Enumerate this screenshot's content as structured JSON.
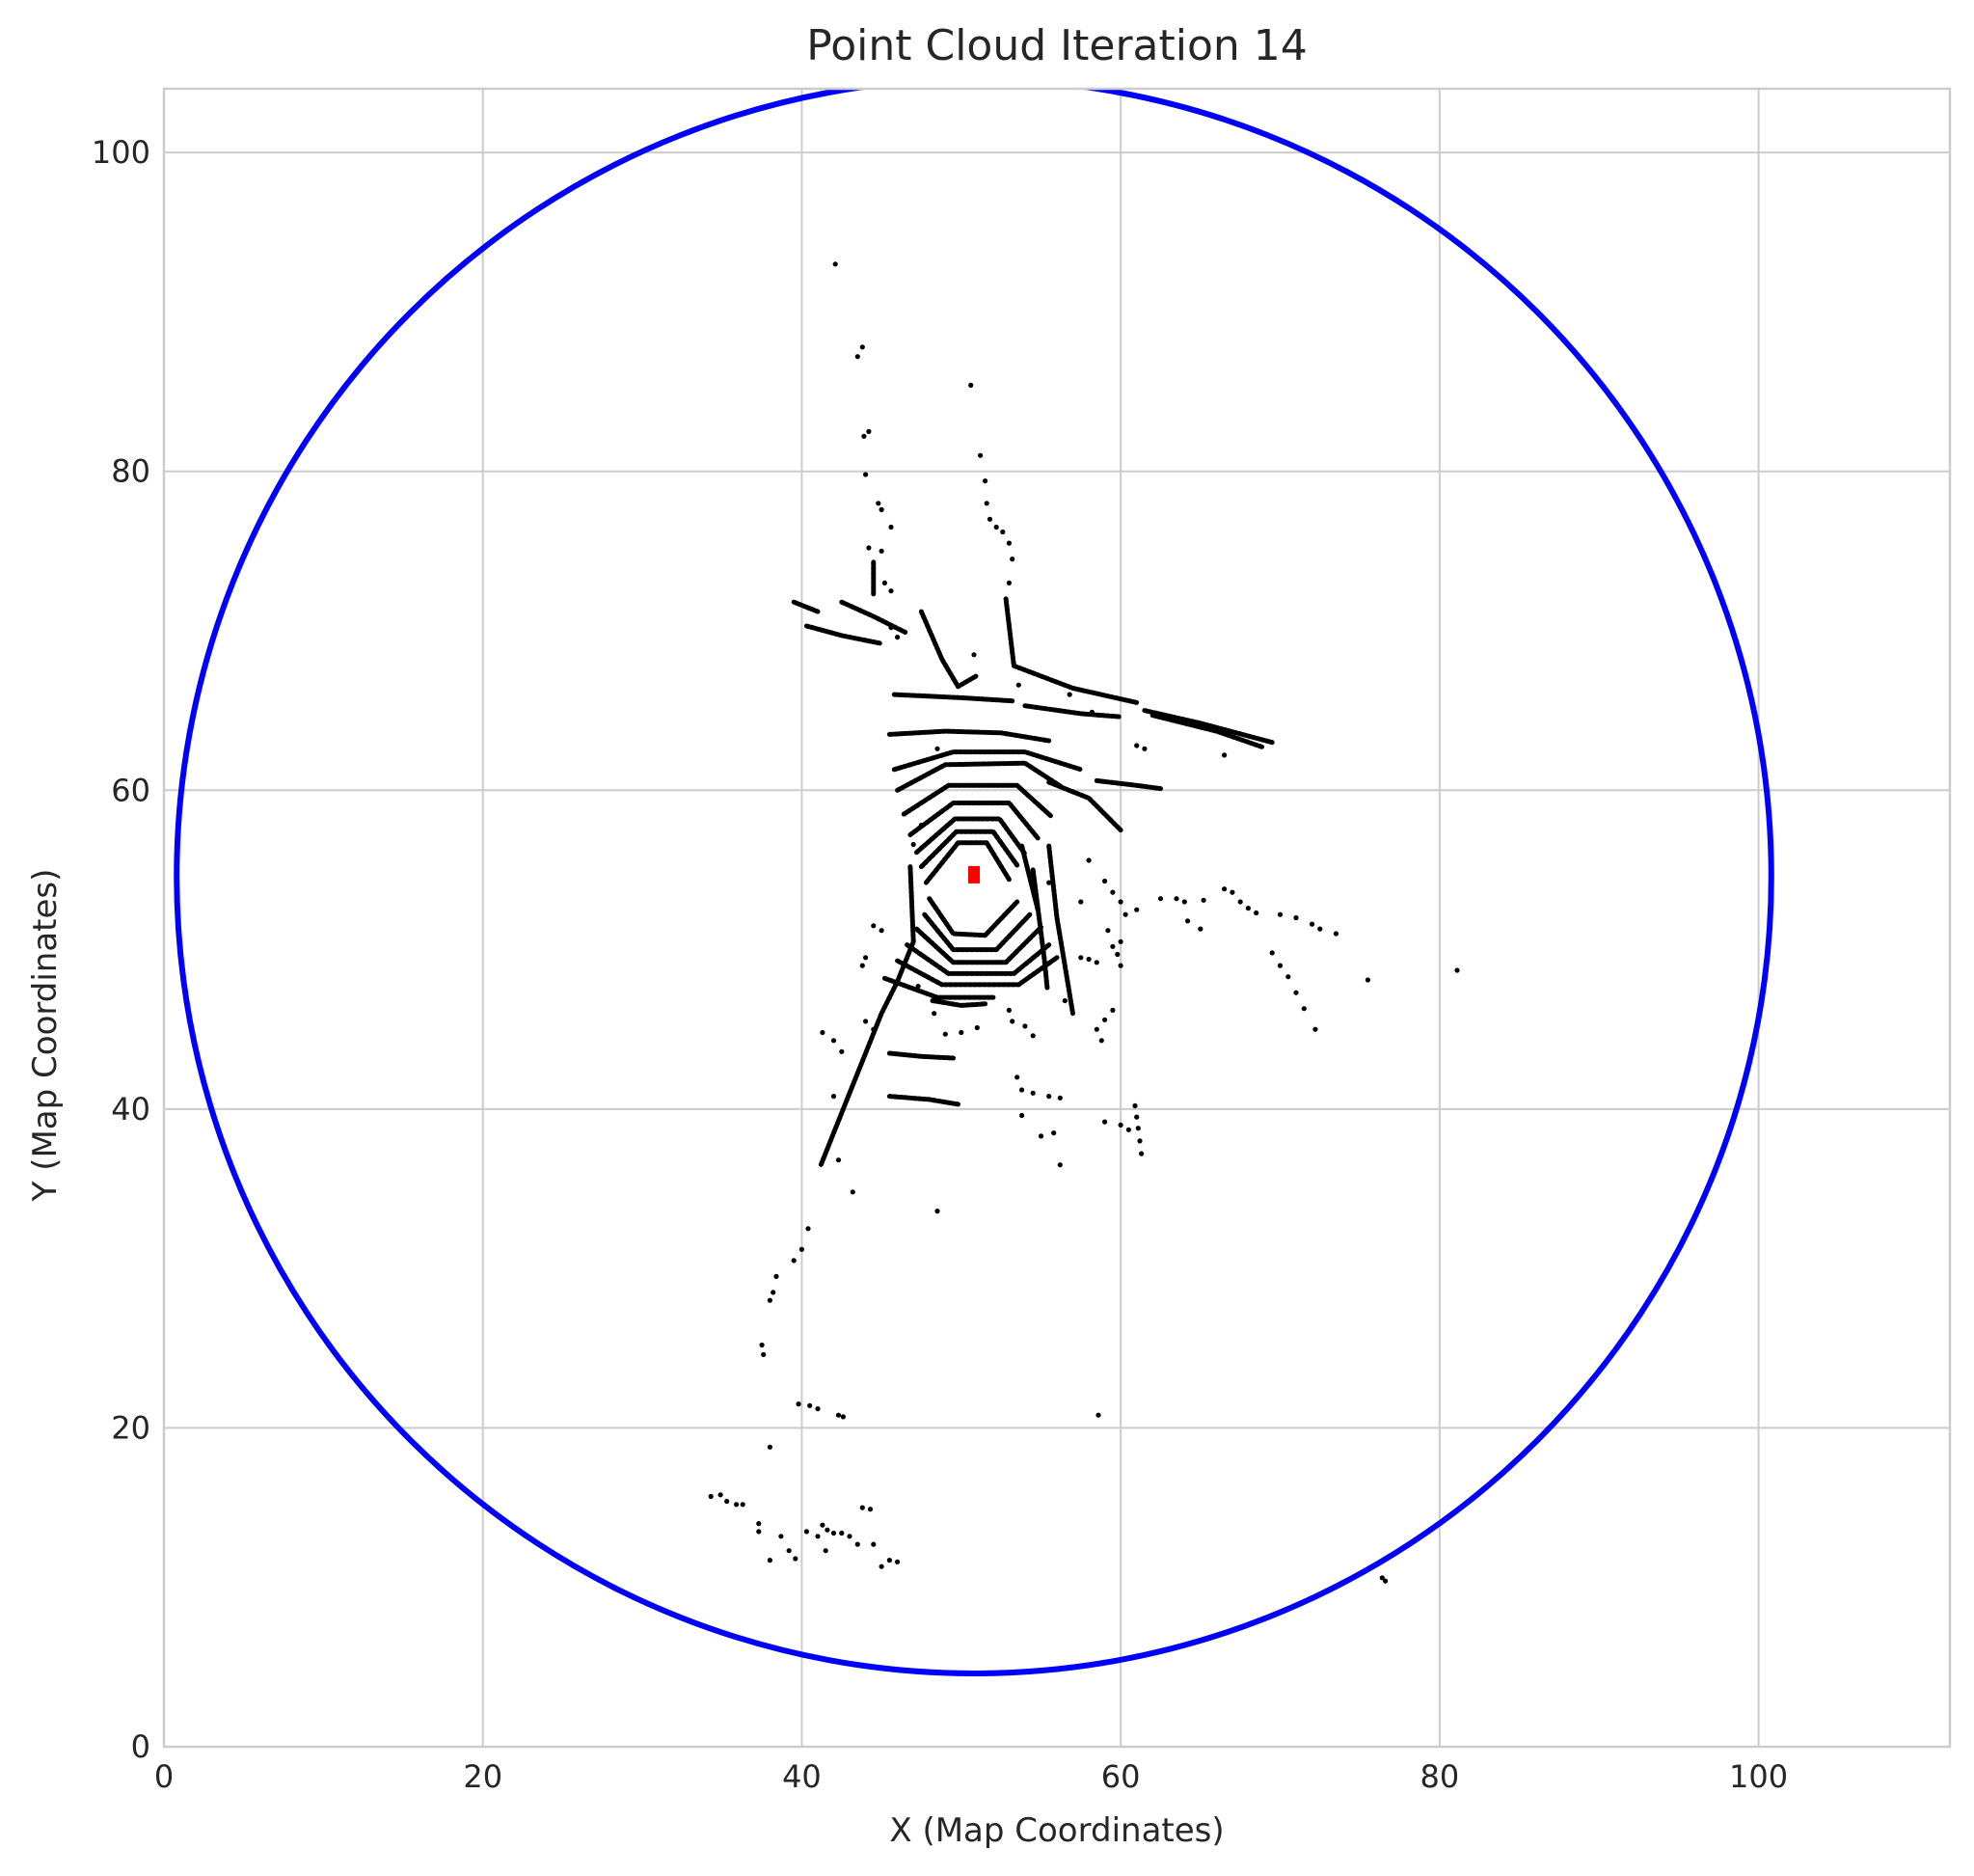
{
  "chart_data": {
    "type": "scatter",
    "title": "Point Cloud Iteration 14",
    "xlabel": "X (Map Coordinates)",
    "ylabel": "Y (Map Coordinates)",
    "xlim": [
      0,
      112
    ],
    "ylim": [
      0,
      104
    ],
    "xticks": [
      0,
      20,
      40,
      60,
      80,
      100
    ],
    "yticks": [
      0,
      20,
      40,
      60,
      80,
      100
    ],
    "grid": true,
    "legend": "none",
    "colors": {
      "points": "#000000",
      "circle": "#0000ff",
      "vehicle": "#ff0000",
      "grid": "#cccccc",
      "text": "#262626"
    },
    "range_circle": {
      "center": [
        50.8,
        54.6
      ],
      "radius": 50
    },
    "vehicle_marker": {
      "x": 50.8,
      "y": 54.7
    },
    "polylines": [
      [
        [
          42.5,
          71.8
        ],
        [
          44.5,
          70.9
        ],
        [
          46.5,
          69.9
        ]
      ],
      [
        [
          39.5,
          71.8
        ],
        [
          41.0,
          71.2
        ]
      ],
      [
        [
          40.3,
          70.3
        ],
        [
          42.5,
          69.7
        ],
        [
          45.0,
          69.2
        ]
      ],
      [
        [
          44.5,
          74.3
        ],
        [
          44.5,
          72.3
        ]
      ],
      [
        [
          45.8,
          66.0
        ],
        [
          50.0,
          65.8
        ],
        [
          53.2,
          65.6
        ]
      ],
      [
        [
          47.5,
          71.2
        ],
        [
          48.8,
          68.2
        ],
        [
          49.8,
          66.5
        ],
        [
          51.0,
          67.2
        ]
      ],
      [
        [
          52.8,
          72.0
        ],
        [
          53.3,
          67.8
        ],
        [
          57.0,
          66.4
        ],
        [
          61.0,
          65.5
        ]
      ],
      [
        [
          54.0,
          65.3
        ],
        [
          57.5,
          64.8
        ],
        [
          60.0,
          64.6
        ]
      ],
      [
        [
          61.5,
          65.0
        ],
        [
          65.0,
          64.2
        ],
        [
          69.5,
          63.0
        ]
      ],
      [
        [
          62.0,
          64.7
        ],
        [
          66.0,
          63.7
        ],
        [
          68.9,
          62.7
        ]
      ],
      [
        [
          45.5,
          63.5
        ],
        [
          49.0,
          63.7
        ],
        [
          52.5,
          63.6
        ],
        [
          55.5,
          63.1
        ]
      ],
      [
        [
          45.8,
          61.3
        ],
        [
          49.5,
          62.4
        ],
        [
          54.0,
          62.4
        ],
        [
          57.5,
          61.3
        ]
      ],
      [
        [
          46.0,
          60.0
        ],
        [
          49.0,
          61.6
        ],
        [
          54.0,
          61.7
        ],
        [
          56.3,
          60.2
        ]
      ],
      [
        [
          46.4,
          58.5
        ],
        [
          49.2,
          60.3
        ],
        [
          53.5,
          60.3
        ],
        [
          55.6,
          58.4
        ]
      ],
      [
        [
          46.8,
          57.2
        ],
        [
          49.5,
          59.2
        ],
        [
          53.0,
          59.2
        ],
        [
          54.8,
          57.0
        ]
      ],
      [
        [
          47.2,
          56.1
        ],
        [
          49.6,
          58.2
        ],
        [
          52.4,
          58.2
        ],
        [
          54.0,
          56.0
        ]
      ],
      [
        [
          47.5,
          55.2
        ],
        [
          49.7,
          57.4
        ],
        [
          52.0,
          57.4
        ],
        [
          53.5,
          55.3
        ]
      ],
      [
        [
          47.8,
          54.2
        ],
        [
          49.8,
          56.7
        ],
        [
          51.6,
          56.7
        ],
        [
          53.0,
          54.4
        ]
      ],
      [
        [
          48.0,
          53.2
        ],
        [
          49.5,
          51.0
        ],
        [
          51.5,
          50.9
        ],
        [
          53.5,
          53.0
        ]
      ],
      [
        [
          47.7,
          52.2
        ],
        [
          49.5,
          50.0
        ],
        [
          52.2,
          50.0
        ],
        [
          54.3,
          52.2
        ]
      ],
      [
        [
          47.2,
          51.3
        ],
        [
          49.5,
          49.2
        ],
        [
          52.8,
          49.2
        ],
        [
          55.0,
          51.4
        ]
      ],
      [
        [
          46.6,
          50.3
        ],
        [
          49.2,
          48.5
        ],
        [
          53.3,
          48.5
        ],
        [
          55.5,
          50.3
        ]
      ],
      [
        [
          46.0,
          49.3
        ],
        [
          48.8,
          47.8
        ],
        [
          53.6,
          47.8
        ],
        [
          56.0,
          49.5
        ]
      ],
      [
        [
          45.2,
          48.2
        ],
        [
          48.5,
          47.0
        ],
        [
          52.0,
          47.0
        ]
      ],
      [
        [
          46.8,
          55.2
        ],
        [
          47.0,
          50.5
        ],
        [
          46.0,
          48.0
        ],
        [
          45.0,
          46.0
        ],
        [
          44.0,
          43.5
        ],
        [
          43.0,
          41.0
        ],
        [
          42.0,
          38.5
        ],
        [
          41.2,
          36.5
        ]
      ],
      [
        [
          53.8,
          56.5
        ],
        [
          54.8,
          52.5
        ]
      ],
      [
        [
          55.5,
          56.5
        ],
        [
          56.0,
          52.0
        ],
        [
          56.5,
          49.0
        ],
        [
          57.0,
          46.0
        ]
      ],
      [
        [
          54.5,
          55.0
        ],
        [
          55.2,
          49.5
        ],
        [
          55.4,
          47.5
        ]
      ],
      [
        [
          45.5,
          43.5
        ],
        [
          47.5,
          43.3
        ],
        [
          49.5,
          43.2
        ]
      ],
      [
        [
          45.5,
          40.8
        ],
        [
          48.0,
          40.6
        ],
        [
          49.8,
          40.3
        ]
      ],
      [
        [
          48.2,
          46.8
        ],
        [
          50.0,
          46.5
        ],
        [
          51.5,
          46.6
        ]
      ],
      [
        [
          55.5,
          60.5
        ],
        [
          58.0,
          59.5
        ],
        [
          60.0,
          57.5
        ]
      ],
      [
        [
          58.5,
          60.6
        ],
        [
          61.0,
          60.3
        ],
        [
          62.5,
          60.1
        ]
      ]
    ],
    "points": [
      [
        42.1,
        93.0
      ],
      [
        43.8,
        87.8
      ],
      [
        43.5,
        87.2
      ],
      [
        43.9,
        82.2
      ],
      [
        44.2,
        82.5
      ],
      [
        44.0,
        79.8
      ],
      [
        44.8,
        78.0
      ],
      [
        45.0,
        77.6
      ],
      [
        45.6,
        76.5
      ],
      [
        44.2,
        75.2
      ],
      [
        45.0,
        75.0
      ],
      [
        45.2,
        73.0
      ],
      [
        45.6,
        72.5
      ],
      [
        50.6,
        85.4
      ],
      [
        51.2,
        81.0
      ],
      [
        51.5,
        79.4
      ],
      [
        51.6,
        78.0
      ],
      [
        51.8,
        77.0
      ],
      [
        52.2,
        76.5
      ],
      [
        52.6,
        76.2
      ],
      [
        53.0,
        75.5
      ],
      [
        53.2,
        74.5
      ],
      [
        53.0,
        73.0
      ],
      [
        45.6,
        70.2
      ],
      [
        46.0,
        69.6
      ],
      [
        50.8,
        68.5
      ],
      [
        53.6,
        66.6
      ],
      [
        56.8,
        66.0
      ],
      [
        58.2,
        64.9
      ],
      [
        61.0,
        62.8
      ],
      [
        61.5,
        62.6
      ],
      [
        66.5,
        62.2
      ],
      [
        48.5,
        62.6
      ],
      [
        47.5,
        57.8
      ],
      [
        47.0,
        56.6
      ],
      [
        58.0,
        55.6
      ],
      [
        55.5,
        54.2
      ],
      [
        57.5,
        53.0
      ],
      [
        59.0,
        54.3
      ],
      [
        59.5,
        53.6
      ],
      [
        60.0,
        53.0
      ],
      [
        60.3,
        52.2
      ],
      [
        61.0,
        52.5
      ],
      [
        62.5,
        53.2
      ],
      [
        63.5,
        53.2
      ],
      [
        64.0,
        53.0
      ],
      [
        65.2,
        53.1
      ],
      [
        66.5,
        53.8
      ],
      [
        67.0,
        53.6
      ],
      [
        67.5,
        53.0
      ],
      [
        68.0,
        52.6
      ],
      [
        68.5,
        52.3
      ],
      [
        70.0,
        52.2
      ],
      [
        71.0,
        52.0
      ],
      [
        72.0,
        51.6
      ],
      [
        72.5,
        51.3
      ],
      [
        73.5,
        51.0
      ],
      [
        64.2,
        51.8
      ],
      [
        65.0,
        51.3
      ],
      [
        59.2,
        51.2
      ],
      [
        60.0,
        50.5
      ],
      [
        59.8,
        49.7
      ],
      [
        60.0,
        49.0
      ],
      [
        59.5,
        50.2
      ],
      [
        57.5,
        49.5
      ],
      [
        58.0,
        49.4
      ],
      [
        58.5,
        49.2
      ],
      [
        69.5,
        49.8
      ],
      [
        70.0,
        49.0
      ],
      [
        70.5,
        48.3
      ],
      [
        71.0,
        47.3
      ],
      [
        71.5,
        46.3
      ],
      [
        72.2,
        45.0
      ],
      [
        75.5,
        48.1
      ],
      [
        81.1,
        48.7
      ],
      [
        53.0,
        46.2
      ],
      [
        53.2,
        45.5
      ],
      [
        54.0,
        45.2
      ],
      [
        54.5,
        44.6
      ],
      [
        56.5,
        46.8
      ],
      [
        59.0,
        45.6
      ],
      [
        59.5,
        46.2
      ],
      [
        58.5,
        45.0
      ],
      [
        58.8,
        44.3
      ],
      [
        53.5,
        42.0
      ],
      [
        53.8,
        41.2
      ],
      [
        54.5,
        41.0
      ],
      [
        55.5,
        40.8
      ],
      [
        56.2,
        40.7
      ],
      [
        53.8,
        39.6
      ],
      [
        55.0,
        38.3
      ],
      [
        55.8,
        38.5
      ],
      [
        56.2,
        36.5
      ],
      [
        59.0,
        39.2
      ],
      [
        60.0,
        39.0
      ],
      [
        60.5,
        38.7
      ],
      [
        60.9,
        40.2
      ],
      [
        61.0,
        39.5
      ],
      [
        61.1,
        38.8
      ],
      [
        61.2,
        38.0
      ],
      [
        61.3,
        37.2
      ],
      [
        41.3,
        44.8
      ],
      [
        42.0,
        44.3
      ],
      [
        42.5,
        43.6
      ],
      [
        42.0,
        40.8
      ],
      [
        42.3,
        36.8
      ],
      [
        43.2,
        34.8
      ],
      [
        44.0,
        45.5
      ],
      [
        44.5,
        45.0
      ],
      [
        47.3,
        47.7
      ],
      [
        48.3,
        46.0
      ],
      [
        49.0,
        44.7
      ],
      [
        50.0,
        44.8
      ],
      [
        51.0,
        45.1
      ],
      [
        48.5,
        33.6
      ],
      [
        44.5,
        51.5
      ],
      [
        45.0,
        51.2
      ],
      [
        44.0,
        49.5
      ],
      [
        43.8,
        49.0
      ],
      [
        58.6,
        20.8
      ],
      [
        40.0,
        31.2
      ],
      [
        40.4,
        32.5
      ],
      [
        39.5,
        30.5
      ],
      [
        38.4,
        29.5
      ],
      [
        38.2,
        28.5
      ],
      [
        38.0,
        28.0
      ],
      [
        37.5,
        25.2
      ],
      [
        37.6,
        24.6
      ],
      [
        38.0,
        18.8
      ],
      [
        39.8,
        21.5
      ],
      [
        40.5,
        21.4
      ],
      [
        41.0,
        21.2
      ],
      [
        42.3,
        20.8
      ],
      [
        42.6,
        20.7
      ],
      [
        34.3,
        15.7
      ],
      [
        34.9,
        15.8
      ],
      [
        35.3,
        15.4
      ],
      [
        35.9,
        15.2
      ],
      [
        36.3,
        15.2
      ],
      [
        37.3,
        14.0
      ],
      [
        37.3,
        13.5
      ],
      [
        38.0,
        11.7
      ],
      [
        38.7,
        13.2
      ],
      [
        39.2,
        12.3
      ],
      [
        39.6,
        11.8
      ],
      [
        40.3,
        13.5
      ],
      [
        41.0,
        13.2
      ],
      [
        41.3,
        13.9
      ],
      [
        41.6,
        13.6
      ],
      [
        41.5,
        12.3
      ],
      [
        42.0,
        13.4
      ],
      [
        42.5,
        13.4
      ],
      [
        43.0,
        13.2
      ],
      [
        43.5,
        12.7
      ],
      [
        43.8,
        15.0
      ],
      [
        44.3,
        14.9
      ],
      [
        44.5,
        12.7
      ],
      [
        45.0,
        11.3
      ],
      [
        45.5,
        11.7
      ],
      [
        46.0,
        11.6
      ],
      [
        76.4,
        10.6
      ],
      [
        76.6,
        10.4
      ]
    ]
  }
}
